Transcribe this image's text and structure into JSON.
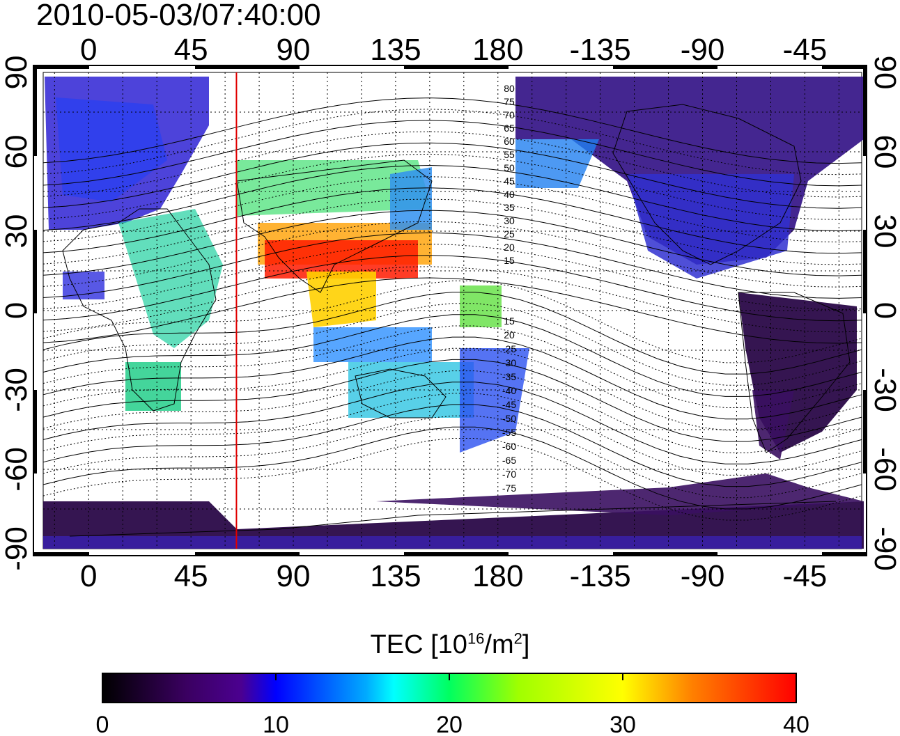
{
  "timestamp": "2010-05-03/07:40:00",
  "map": {
    "lon_tick_labels": [
      "0",
      "45",
      "90",
      "135",
      "180",
      "-135",
      "-90",
      "-45"
    ],
    "lat_tick_labels": [
      "90",
      "60",
      "30",
      "0",
      "-30",
      "-60",
      "-90"
    ],
    "contour_labels_north": [
      "80",
      "75",
      "70",
      "65",
      "60",
      "55",
      "50",
      "45",
      "40",
      "35",
      "30",
      "25",
      "20",
      "15"
    ],
    "contour_labels_south": [
      "15",
      "20",
      "25",
      "30",
      "35",
      "40",
      "45",
      "50",
      "55",
      "60",
      "65",
      "70",
      "75"
    ],
    "red_meridian_lon": 65,
    "grid": "dotted"
  },
  "colorbar": {
    "title": "TEC  [10",
    "title_exp": "16",
    "title_mid": "/m",
    "title_exp2": "2",
    "title_end": "]",
    "ticks": [
      "0",
      "10",
      "20",
      "30",
      "40"
    ],
    "range": [
      0,
      40
    ],
    "colors": [
      "#000000",
      "#3a0060",
      "#4b0082",
      "#0000ff",
      "#00aaff",
      "#00ffff",
      "#00ff00",
      "#ffff00",
      "#ff8000",
      "#ff0000"
    ]
  }
}
